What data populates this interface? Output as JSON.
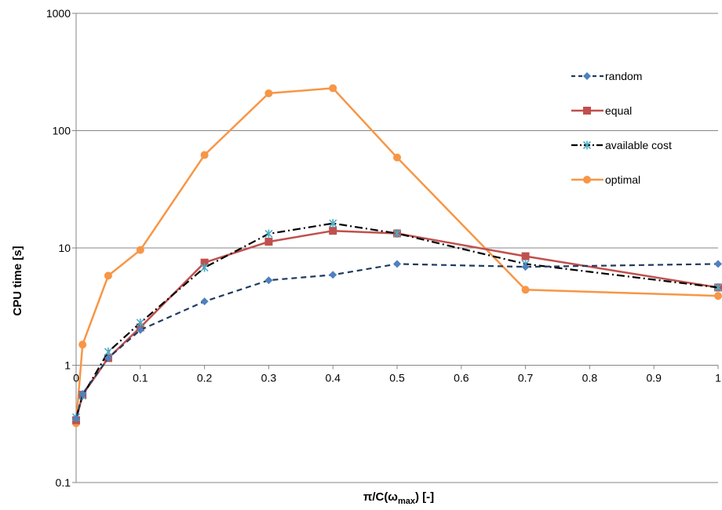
{
  "chart_data": {
    "type": "line",
    "title": "",
    "xlabel": {
      "prefix": "π/C(ω",
      "sub": "max",
      "suffix": ") [-]"
    },
    "ylabel": "CPU time [s]",
    "y_scale": "log",
    "ylim": [
      0.1,
      1000
    ],
    "xlim": [
      0,
      1
    ],
    "x_tick_labels": [
      "0",
      "0.1",
      "0.2",
      "0.3",
      "0.4",
      "0.5",
      "0.6",
      "0.7",
      "0.8",
      "0.9",
      "1"
    ],
    "x_tick_values": [
      0,
      0.1,
      0.2,
      0.3,
      0.4,
      0.5,
      0.6,
      0.7,
      0.8,
      0.9,
      1
    ],
    "y_tick_labels": [
      "0.1",
      "1",
      "10",
      "100",
      "1000"
    ],
    "y_tick_values": [
      0.1,
      1,
      10,
      100,
      1000
    ],
    "grid": {
      "horizontal": true,
      "vertical": false
    },
    "legend_position": "right",
    "series": [
      {
        "name": "random",
        "color": "#1F3A5F",
        "dash": "dashed",
        "marker": "diamond",
        "marker_color": "#4F81BD",
        "x": [
          0,
          0.01,
          0.05,
          0.1,
          0.2,
          0.3,
          0.4,
          0.5,
          0.7,
          1
        ],
        "y": [
          0.35,
          0.57,
          1.15,
          2.0,
          3.5,
          5.3,
          5.9,
          7.3,
          6.9,
          7.3
        ]
      },
      {
        "name": "equal",
        "color": "#C0504D",
        "dash": "solid",
        "marker": "square",
        "marker_color": "#C0504D",
        "x": [
          0,
          0.01,
          0.05,
          0.1,
          0.2,
          0.3,
          0.4,
          0.5,
          0.7,
          1
        ],
        "y": [
          0.34,
          0.56,
          1.15,
          2.1,
          7.5,
          11.3,
          14.0,
          13.3,
          8.5,
          4.6
        ]
      },
      {
        "name": "available cost",
        "color": "#000000",
        "dash": "dashdot",
        "marker": "star",
        "marker_color": "#4BACC6",
        "x": [
          0,
          0.01,
          0.05,
          0.1,
          0.2,
          0.3,
          0.4,
          0.5,
          0.7,
          1
        ],
        "y": [
          0.36,
          0.55,
          1.3,
          2.3,
          6.8,
          13.2,
          16.2,
          13.3,
          7.3,
          4.6
        ]
      },
      {
        "name": "optimal",
        "color": "#F79646",
        "dash": "solid",
        "marker": "circle",
        "marker_color": "#F79646",
        "x": [
          0,
          0.01,
          0.05,
          0.1,
          0.2,
          0.3,
          0.4,
          0.5,
          0.7,
          1
        ],
        "y": [
          0.32,
          1.5,
          5.8,
          9.6,
          62,
          208,
          230,
          59,
          4.4,
          3.9
        ]
      }
    ]
  }
}
